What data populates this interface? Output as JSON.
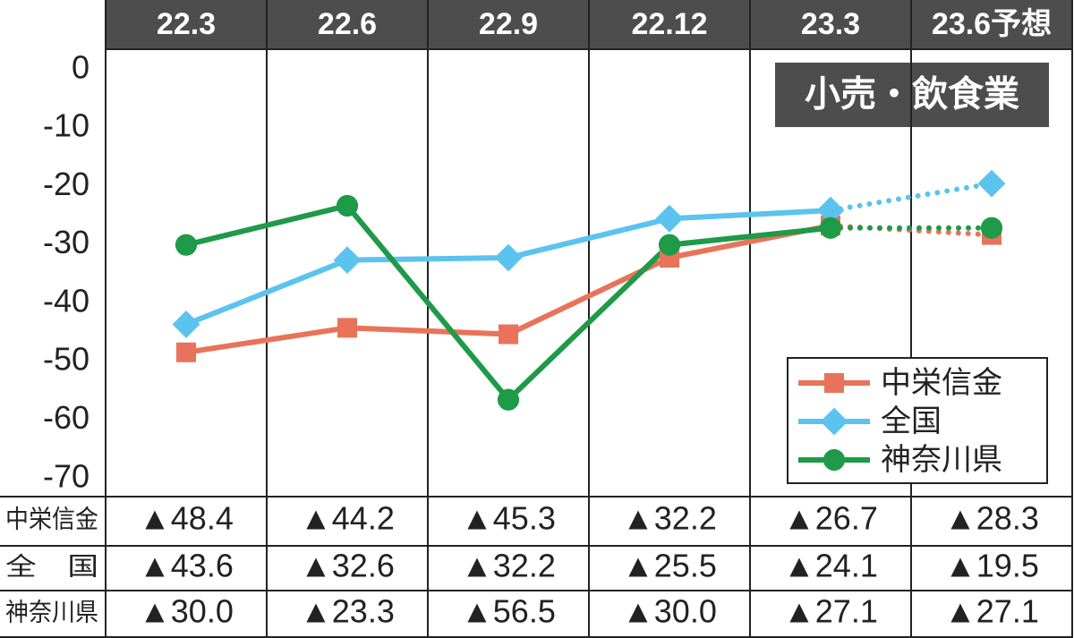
{
  "chart_data": {
    "type": "line",
    "title": "小売・飲食業",
    "categories": [
      "22.3",
      "22.6",
      "22.9",
      "22.12",
      "23.3",
      "23.6予想"
    ],
    "series": [
      {
        "name": "中栄信金",
        "color": "#e8735a",
        "marker": "square",
        "values": [
          -48.4,
          -44.2,
          -45.3,
          -32.2,
          -26.7,
          -28.3
        ],
        "value_labels": [
          "▲48.4",
          "▲44.2",
          "▲45.3",
          "▲32.2",
          "▲26.7",
          "▲28.3"
        ]
      },
      {
        "name": "全国",
        "color": "#5bc3ee",
        "marker": "diamond",
        "values": [
          -43.6,
          -32.6,
          -32.2,
          -25.5,
          -24.1,
          -19.5
        ],
        "value_labels": [
          "▲43.6",
          "▲32.6",
          "▲32.2",
          "▲25.5",
          "▲24.1",
          "▲19.5"
        ]
      },
      {
        "name": "神奈川県",
        "color": "#1e9a48",
        "marker": "circle",
        "values": [
          -30.0,
          -23.3,
          -56.5,
          -30.0,
          -27.1,
          -27.1
        ],
        "value_labels": [
          "▲30.0",
          "▲23.3",
          "▲56.5",
          "▲30.0",
          "▲27.1",
          "▲27.1"
        ]
      }
    ],
    "ylim": [
      -73.1,
      3.5
    ],
    "yticks": [
      0,
      -10,
      -20,
      -30,
      -40,
      -50,
      -60,
      -70
    ],
    "dotted_last_segment": true,
    "legend": "lower right",
    "table_row_labels": [
      "中栄信金",
      "全　国",
      "神奈川県"
    ]
  }
}
